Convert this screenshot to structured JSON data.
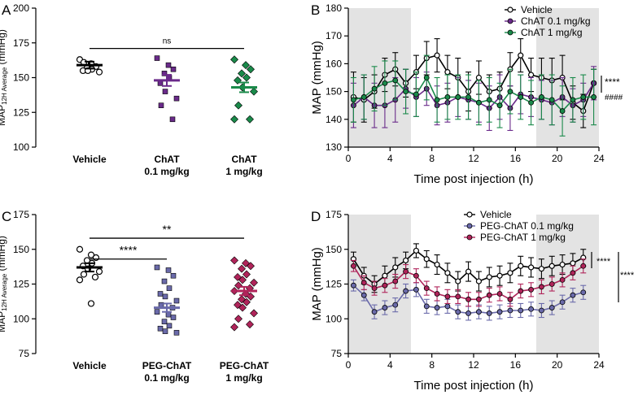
{
  "colors": {
    "vehicle": "#000000",
    "chat01": "#6a2a8a",
    "chat1": "#1a8a4a",
    "peg01": "#6a6aaa",
    "peg1": "#b0245a",
    "shade": "#e3e3e3"
  },
  "chart_data": [
    {
      "panel": "A",
      "type": "scatter",
      "ylabel_main": "MAP",
      "ylabel_sub": "12H Average",
      "ylabel_unit": "(mmHg)",
      "ylim": [
        100,
        200
      ],
      "yticks": [
        100,
        125,
        150,
        175,
        200
      ],
      "groups": [
        {
          "name_line1": "Vehicle",
          "name_line2": "",
          "color": "vehicle",
          "marker": "circle-open",
          "mean": 159,
          "sem": 2.5,
          "points": [
            163,
            160,
            158,
            157,
            156,
            155,
            155,
            154,
            161
          ]
        },
        {
          "name_line1": "ChAT",
          "name_line2": "0.1 mg/kg",
          "color": "chat01",
          "marker": "square",
          "mean": 148,
          "sem": 4,
          "points": [
            164,
            159,
            156,
            153,
            150,
            146,
            140,
            135,
            130,
            120
          ]
        },
        {
          "name_line1": "ChAT",
          "name_line2": "1 mg/kg",
          "color": "chat1",
          "marker": "diamond",
          "mean": 143,
          "sem": 3.5,
          "points": [
            163,
            159,
            156,
            153,
            150,
            148,
            143,
            140,
            130,
            120,
            120
          ]
        }
      ],
      "significance": [
        {
          "from": 0,
          "to": 2,
          "label": "ns",
          "y": 171
        }
      ]
    },
    {
      "panel": "B",
      "type": "line",
      "xlabel": "Time post injection (h)",
      "ylabel": "MAP (mmHg)",
      "xlim": [
        0,
        24
      ],
      "ylim": [
        130,
        180
      ],
      "xticks": [
        0,
        4,
        8,
        12,
        16,
        20,
        24
      ],
      "yticks": [
        130,
        140,
        150,
        160,
        170,
        180
      ],
      "shaded": [
        [
          0,
          6
        ],
        [
          18,
          24
        ]
      ],
      "x": [
        0.5,
        1.5,
        2.5,
        3.5,
        4.5,
        5.5,
        6.5,
        7.5,
        8.5,
        9.5,
        10.5,
        11.5,
        12.5,
        13.5,
        14.5,
        15.5,
        16.5,
        17.5,
        18.5,
        19.5,
        20.5,
        21.5,
        22.5,
        23.5
      ],
      "series": [
        {
          "name": "Vehicle",
          "color": "vehicle",
          "marker": "circle-open",
          "values": [
            148,
            147,
            150,
            156,
            158,
            153,
            157,
            162,
            163,
            157,
            155,
            150,
            155,
            150,
            151,
            158,
            163,
            156,
            155,
            154,
            155,
            146,
            143,
            153
          ],
          "err": [
            9,
            8,
            6,
            6,
            6,
            5,
            6,
            6,
            6,
            6,
            7,
            7,
            6,
            6,
            6,
            6,
            6,
            6,
            7,
            8,
            8,
            6,
            6,
            5
          ]
        },
        {
          "name": "ChAT 0.1 mg/kg",
          "color": "chat01",
          "marker": "circle",
          "values": [
            145,
            148,
            145,
            145,
            147,
            151,
            148,
            151,
            145,
            146,
            148,
            147,
            146,
            144,
            148,
            144,
            149,
            148,
            147,
            146,
            148,
            145,
            147,
            153
          ],
          "err": [
            8,
            8,
            8,
            8,
            8,
            7,
            7,
            6,
            7,
            7,
            7,
            7,
            7,
            8,
            8,
            8,
            7,
            7,
            7,
            8,
            7,
            6,
            6,
            6
          ]
        },
        {
          "name": "ChAT 1 mg/kg",
          "color": "chat1",
          "marker": "circle",
          "values": [
            147,
            148,
            151,
            153,
            154,
            150,
            149,
            155,
            147,
            148,
            148,
            148,
            146,
            147,
            145,
            150,
            148,
            146,
            148,
            147,
            143,
            147,
            148,
            148
          ],
          "err": [
            8,
            8,
            8,
            8,
            7,
            8,
            8,
            8,
            8,
            8,
            8,
            8,
            8,
            8,
            8,
            8,
            8,
            8,
            8,
            9,
            9,
            8,
            8,
            10
          ]
        }
      ],
      "annotations": [
        "****",
        "####"
      ]
    },
    {
      "panel": "C",
      "type": "scatter",
      "ylabel_main": "MAP",
      "ylabel_sub": "12H Average",
      "ylabel_unit": "(mmHg)",
      "ylim": [
        75,
        175
      ],
      "yticks": [
        75,
        100,
        125,
        150,
        175
      ],
      "groups": [
        {
          "name_line1": "Vehicle",
          "name_line2": "",
          "color": "vehicle",
          "marker": "circle-open",
          "mean": 137,
          "sem": 3,
          "points": [
            150,
            146,
            144,
            142,
            140,
            138,
            136,
            134,
            132,
            130,
            128,
            111
          ]
        },
        {
          "name_line1": "PEG-ChAT",
          "name_line2": "0.1 mg/kg",
          "color": "peg01",
          "marker": "square",
          "mean": 108,
          "sem": 3,
          "points": [
            137,
            135,
            131,
            127,
            122,
            118,
            116,
            113,
            110,
            108,
            105,
            103,
            101,
            98,
            95,
            93,
            91,
            90
          ]
        },
        {
          "name_line1": "PEG-ChAT",
          "name_line2": "1 mg/kg",
          "color": "peg1",
          "marker": "diamond",
          "mean": 120,
          "sem": 3,
          "points": [
            142,
            140,
            138,
            136,
            132,
            130,
            128,
            126,
            124,
            122,
            120,
            118,
            116,
            114,
            112,
            110,
            108,
            104,
            100,
            96,
            94
          ]
        }
      ],
      "significance": [
        {
          "from": 0,
          "to": 1,
          "label": "****",
          "y": 143
        },
        {
          "from": 0,
          "to": 2,
          "label": "**",
          "y": 158
        }
      ]
    },
    {
      "panel": "D",
      "type": "line",
      "xlabel": "Time post injection (h)",
      "ylabel": "MAP (mmHg)",
      "xlim": [
        0,
        24
      ],
      "ylim": [
        75,
        175
      ],
      "xticks": [
        0,
        4,
        8,
        12,
        16,
        20,
        24
      ],
      "yticks": [
        75,
        100,
        125,
        150,
        175
      ],
      "shaded": [
        [
          0,
          6
        ],
        [
          18,
          24
        ]
      ],
      "x": [
        0.5,
        1.5,
        2.5,
        3.5,
        4.5,
        5.5,
        6.5,
        7.5,
        8.5,
        9.5,
        10.5,
        11.5,
        12.5,
        13.5,
        14.5,
        15.5,
        16.5,
        17.5,
        18.5,
        19.5,
        20.5,
        21.5,
        22.5
      ],
      "series": [
        {
          "name": "Vehicle",
          "color": "vehicle",
          "marker": "circle-open",
          "values": [
            143,
            131,
            125,
            131,
            137,
            142,
            149,
            143,
            139,
            133,
            127,
            134,
            127,
            130,
            131,
            133,
            138,
            137,
            136,
            138,
            139,
            140,
            144
          ],
          "err": [
            5,
            6,
            6,
            7,
            7,
            6,
            5,
            6,
            7,
            7,
            7,
            7,
            7,
            7,
            7,
            7,
            7,
            7,
            7,
            7,
            7,
            7,
            6
          ]
        },
        {
          "name": "PEG-ChAT 0.1 mg/kg",
          "color": "peg01",
          "marker": "circle",
          "values": [
            124,
            117,
            105,
            108,
            110,
            120,
            121,
            109,
            108,
            109,
            105,
            104,
            105,
            104,
            105,
            106,
            106,
            107,
            106,
            108,
            112,
            117,
            119
          ],
          "err": [
            4,
            4,
            5,
            5,
            5,
            5,
            5,
            5,
            5,
            5,
            5,
            5,
            5,
            5,
            5,
            5,
            5,
            5,
            5,
            5,
            5,
            5,
            5
          ]
        },
        {
          "name": "PEG-ChAT 1 mg/kg",
          "color": "peg1",
          "marker": "circle",
          "values": [
            138,
            126,
            122,
            124,
            127,
            134,
            131,
            122,
            118,
            116,
            116,
            114,
            114,
            117,
            118,
            114,
            120,
            121,
            123,
            125,
            128,
            133,
            138
          ],
          "err": [
            4,
            5,
            5,
            5,
            5,
            5,
            5,
            5,
            5,
            5,
            5,
            5,
            5,
            5,
            5,
            5,
            5,
            5,
            5,
            5,
            5,
            5,
            5
          ]
        }
      ],
      "annotations": [
        "****",
        "****"
      ]
    }
  ]
}
